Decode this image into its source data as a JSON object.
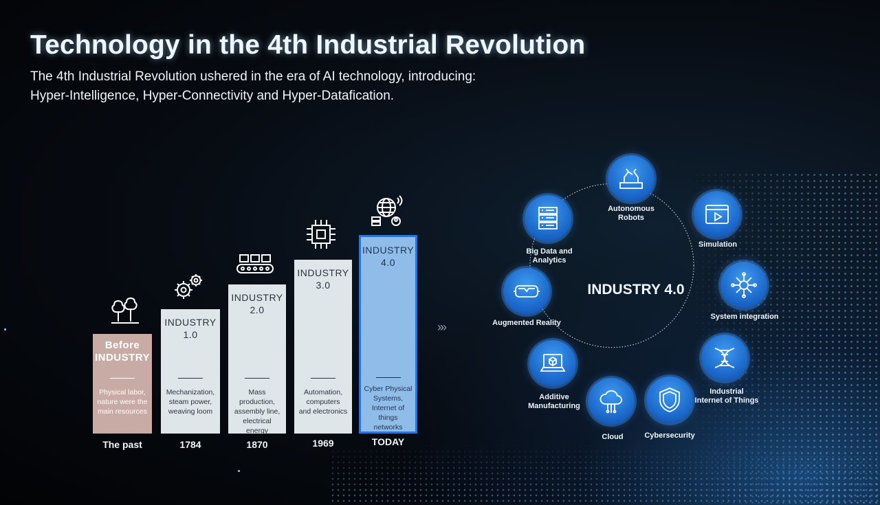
{
  "slide": {
    "title": "Technology in the 4th Industrial Revolution",
    "subtitle_line1": "The 4th Industrial Revolution ushered in the era of AI technology, introducing:",
    "subtitle_line2": "Hyper-Intelligence, Hyper-Connectivity and Hyper-Datafication."
  },
  "stairs": [
    {
      "name": "Before\nINDUSTRY",
      "desc": "Physical labor,\nnature were the\nmain resources",
      "era": "The past",
      "icon": "trees-icon"
    },
    {
      "name": "INDUSTRY\n1.0",
      "desc": "Mechanization,\nsteam power,\nweaving loom",
      "era": "1784",
      "icon": "gears-icon"
    },
    {
      "name": "INDUSTRY\n2.0",
      "desc": "Mass production,\nassembly line,\nelectrical energy",
      "era": "1870",
      "icon": "conveyor-icon"
    },
    {
      "name": "INDUSTRY\n3.0",
      "desc": "Automation,\ncomputers\nand electronics",
      "era": "1969",
      "icon": "chip-icon"
    },
    {
      "name": "INDUSTRY\n4.0",
      "desc": "Cyber Physical\nSystems,\nInternet of things\nnetworks",
      "era": "TODAY",
      "icon": "globe-network-icon"
    }
  ],
  "arrows": "»»",
  "ring": {
    "center": "INDUSTRY 4.0",
    "nodes": [
      {
        "label": "Autonomous\nRobots",
        "icon": "robot-arm-icon"
      },
      {
        "label": "Simulation",
        "icon": "play-window-icon"
      },
      {
        "label": "System integration",
        "icon": "network-hub-icon"
      },
      {
        "label": "Industrial\nInternet of Things",
        "icon": "dna-icon"
      },
      {
        "label": "Cybersecurity",
        "icon": "shield-icon"
      },
      {
        "label": "Cloud",
        "icon": "cloud-icon"
      },
      {
        "label": "Additive\nManufacturing",
        "icon": "laptop-cube-icon"
      },
      {
        "label": "Augmented Reality",
        "icon": "vr-headset-icon"
      },
      {
        "label": "Big Data and Analytics",
        "icon": "server-icon"
      }
    ]
  },
  "colors": {
    "today_border": "#2a74d6",
    "node_blue": "#1a66c8",
    "past_bar": "#c9aba6"
  }
}
